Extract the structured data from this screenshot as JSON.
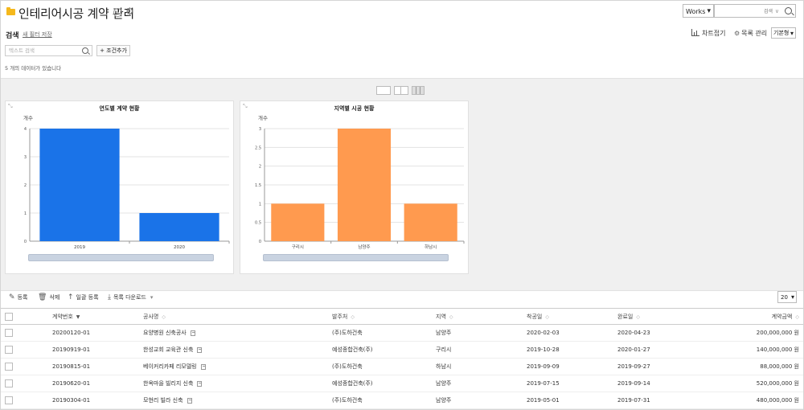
{
  "header": {
    "title": "인테리어시공 계약 관리",
    "info_icon": "info-icon",
    "settings_icon": "gear-icon",
    "app_select": "Works",
    "top_search_label": "검색",
    "top_search_dropdown": "∨"
  },
  "search": {
    "title": "검색",
    "save_filter": "새 필터 저장",
    "placeholder": "텍스트 검색",
    "add_condition": "+ 조건추가",
    "count": "5 개의 데이터가 있습니다"
  },
  "view_controls": {
    "chart_fold": "차트접기",
    "list_manage": "목록 관리",
    "view_type": "기본형"
  },
  "charts": {
    "chart_data": [
      {
        "type": "bar",
        "title": "연도별 계약 현황",
        "ylabel": "개수",
        "xlabel": "",
        "categories": [
          "2019",
          "2020"
        ],
        "values": [
          4,
          1
        ],
        "ylim": [
          0,
          4
        ],
        "yticks": [
          "0",
          "1",
          "2",
          "3",
          "4"
        ],
        "color": "#1a73e8",
        "grid": true
      },
      {
        "type": "bar",
        "title": "지역별 시공 현황",
        "ylabel": "개수",
        "xlabel": "",
        "categories": [
          "구리시",
          "남양주",
          "하남시"
        ],
        "values": [
          1,
          3,
          1
        ],
        "ylim": [
          0,
          3
        ],
        "yticks": [
          "0",
          "0.5",
          "1",
          "1.5",
          "2",
          "2.5",
          "3"
        ],
        "color": "#ff9a4f",
        "grid": true
      }
    ]
  },
  "toolbar": {
    "register": "등록",
    "delete": "삭제",
    "bulk_register": "일괄 등록",
    "download": "목록 다운로드",
    "page_size": "20"
  },
  "table": {
    "columns": [
      "계약번호",
      "공사명",
      "발주처",
      "지역",
      "착공일",
      "완료일",
      "계약금액"
    ],
    "rows": [
      [
        "20200120-01",
        "요양병원 신축공사",
        "(주)도하건축",
        "남양주",
        "2020-02-03",
        "2020-04-23",
        "200,000,000 원"
      ],
      [
        "20190919-01",
        "한성교회 교육관 신축",
        "예성종합건축(주)",
        "구리시",
        "2019-10-28",
        "2020-01-27",
        "140,000,000 원"
      ],
      [
        "20190815-01",
        "베이커리카페 리모델링",
        "(주)도하건축",
        "하남시",
        "2019-09-09",
        "2019-09-27",
        "88,000,000 원"
      ],
      [
        "20190620-01",
        "한옥마을 빌리지 신축",
        "예성종합건축(주)",
        "남양주",
        "2019-07-15",
        "2019-09-14",
        "520,000,000 원"
      ],
      [
        "20190304-01",
        "모현리 빌라 신축",
        "(주)도하건축",
        "남양주",
        "2019-05-01",
        "2019-07-31",
        "480,000,000 원"
      ]
    ]
  }
}
